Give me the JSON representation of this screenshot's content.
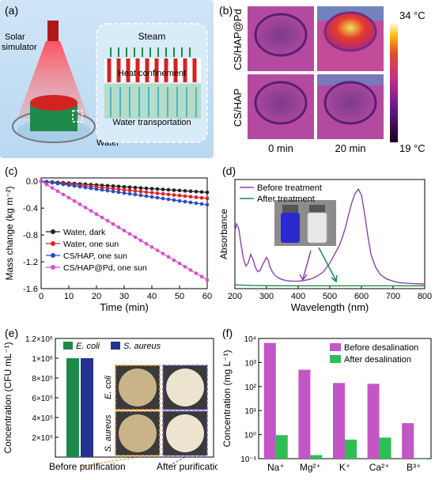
{
  "panels": {
    "a": {
      "label": "(a)",
      "solar": "Solar\nsimulator",
      "steam": "Steam",
      "heat": "Heat confinement",
      "water_transport": "Water transportation",
      "water": "Water"
    },
    "b": {
      "label": "(b)",
      "row1": "CS/HAP@Pd",
      "row2": "CS/HAP",
      "col1": "0 min",
      "col2": "20 min",
      "tmax": "34 °C",
      "tmin": "19 °C"
    },
    "c": {
      "label": "(c)"
    },
    "d": {
      "label": "(d)"
    },
    "e": {
      "label": "(e)",
      "img_col1": "E. coli",
      "img_col2": "S. aureus"
    },
    "f": {
      "label": "(f)"
    }
  },
  "colors": {
    "purple": "#c455c4",
    "green": "#2dbf55",
    "dark_green": "#1d8a4a",
    "navy": "#22348f",
    "black": "#222222",
    "red": "#e02020",
    "blue": "#2b4cc6",
    "magenta": "#d84fd0"
  },
  "chart_data": [
    {
      "panel": "c",
      "type": "line",
      "xlabel": "Time (min)",
      "ylabel": "Mass change (kg m⁻²)",
      "xlim": [
        0,
        60
      ],
      "ylim": [
        -1.6,
        0.05
      ],
      "xticks": [
        0,
        10,
        20,
        30,
        40,
        50,
        60
      ],
      "yticks": [
        0.0,
        -0.4,
        -0.8,
        -1.2,
        -1.6
      ],
      "ytick_labels": [
        "0.0",
        "-0.4",
        "-0.8",
        "-1.2",
        "-1.6"
      ],
      "legend_position": "bottom-left",
      "series": [
        {
          "name": "Water, dark",
          "color": "#222222",
          "slope": -0.00275
        },
        {
          "name": "Water, one sun",
          "color": "#e02020",
          "slope": -0.00425
        },
        {
          "name": "CS/HAP, one sun",
          "color": "#2b4cc6",
          "slope": -0.00583
        },
        {
          "name": "CS/HAP@Pd, one sun",
          "color": "#d84fd0",
          "slope": -0.0245
        }
      ]
    },
    {
      "panel": "d",
      "type": "line",
      "xlabel": "Wavelength (nm)",
      "ylabel": "Absorbance",
      "xlim": [
        200,
        800
      ],
      "xticks": [
        200,
        300,
        400,
        500,
        600,
        700,
        800
      ],
      "legend_position": "top-left",
      "series": [
        {
          "name": "Before treatment",
          "color": "#8b46a8",
          "x": [
            200,
            205,
            212,
            220,
            228,
            235,
            242,
            250,
            258,
            265,
            272,
            280,
            288,
            295,
            300,
            305,
            310,
            318,
            325,
            335,
            345,
            360,
            380,
            400,
            420,
            440,
            460,
            480,
            500,
            510,
            520,
            530,
            540,
            550,
            560,
            570,
            580,
            590,
            600,
            610,
            620,
            630,
            645,
            660,
            680,
            700,
            720,
            750,
            800
          ],
          "y": [
            0.38,
            0.43,
            0.4,
            0.28,
            0.18,
            0.14,
            0.16,
            0.22,
            0.18,
            0.13,
            0.1,
            0.11,
            0.15,
            0.18,
            0.2,
            0.18,
            0.14,
            0.1,
            0.08,
            0.06,
            0.05,
            0.04,
            0.035,
            0.035,
            0.04,
            0.05,
            0.07,
            0.1,
            0.16,
            0.2,
            0.24,
            0.28,
            0.34,
            0.41,
            0.5,
            0.58,
            0.64,
            0.67,
            0.63,
            0.5,
            0.35,
            0.22,
            0.13,
            0.08,
            0.05,
            0.035,
            0.025,
            0.02,
            0.015
          ]
        },
        {
          "name": "After treatment",
          "color": "#1d8a4a",
          "x": [
            200,
            220,
            260,
            300,
            400,
            500,
            600,
            700,
            800
          ],
          "y": [
            0.01,
            0.008,
            0.005,
            0.004,
            0.003,
            0.003,
            0.003,
            0.003,
            0.003
          ]
        }
      ]
    },
    {
      "panel": "e",
      "type": "bar",
      "ylabel": "Concentration (CFU mL⁻¹)",
      "categories": [
        "Before purification",
        "After purification"
      ],
      "ylim": [
        0,
        1200000
      ],
      "yticks": [
        200000,
        400000,
        600000,
        800000,
        1000000,
        1200000
      ],
      "ytick_labels": [
        "2×10⁵",
        "4×10⁵",
        "6×10⁵",
        "8×10⁵",
        "1×10⁶",
        "1.2×10⁶"
      ],
      "legend_position": "top",
      "series": [
        {
          "name": "E. coli",
          "color": "#1d8a4a",
          "values": [
            1000000,
            0
          ]
        },
        {
          "name": "S. aureus",
          "color": "#22348f",
          "values": [
            1000000,
            0
          ]
        }
      ]
    },
    {
      "panel": "f",
      "type": "bar",
      "log_scale": true,
      "ylabel": "Concentration (mg L⁻¹)",
      "categories": [
        "Na⁺",
        "Mg²⁺",
        "K⁺",
        "Ca²⁺",
        "B³⁺"
      ],
      "ylim": [
        0.1,
        10000
      ],
      "yticks": [
        0.1,
        1,
        10,
        100,
        1000,
        10000
      ],
      "ytick_labels": [
        "10⁻¹",
        "10⁰",
        "10¹",
        "10²",
        "10³",
        "10⁴"
      ],
      "legend_position": "top-right",
      "series": [
        {
          "name": "Before desalination",
          "color": "#c455c4",
          "values": [
            6500,
            500,
            140,
            130,
            3
          ]
        },
        {
          "name": "After desalination",
          "color": "#2dbf55",
          "values": [
            0.95,
            0.14,
            0.62,
            0.75,
            0.1
          ]
        }
      ]
    }
  ]
}
